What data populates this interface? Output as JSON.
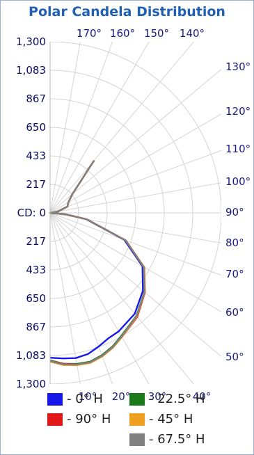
{
  "chart_data": {
    "type": "polar",
    "title": "Polar Candela Distribution",
    "radial_ticks": [
      "1,300",
      "1,083",
      "867",
      "650",
      "433",
      "217",
      "CD: 0",
      "217",
      "433",
      "650",
      "867",
      "1,083",
      "1,300"
    ],
    "radial_max": 1300,
    "top_angle_labels": [
      "170°",
      "160°",
      "150°",
      "140°"
    ],
    "right_angle_labels": [
      "130°",
      "120°",
      "110°",
      "100°",
      "90°",
      "80°",
      "70°",
      "60°",
      "50°"
    ],
    "bottom_angle_labels": [
      "10°",
      "20°",
      "30°",
      "40°"
    ],
    "grid": true,
    "series": [
      {
        "name": "- 0° H",
        "color": "#1818e8",
        "points": [
          [
            0,
            1100
          ],
          [
            5,
            1110
          ],
          [
            10,
            1120
          ],
          [
            15,
            1110
          ],
          [
            20,
            1080
          ],
          [
            25,
            1050
          ],
          [
            30,
            1040
          ],
          [
            40,
            1000
          ],
          [
            50,
            920
          ],
          [
            60,
            810
          ],
          [
            70,
            600
          ],
          [
            80,
            280
          ],
          [
            85,
            120
          ],
          [
            90,
            0
          ],
          [
            100,
            60
          ],
          [
            110,
            140
          ],
          [
            120,
            160
          ],
          [
            130,
            220
          ],
          [
            140,
            520
          ]
        ]
      },
      {
        "name": "- 22.5° H",
        "color": "#1a7a1a",
        "points": [
          [
            0,
            1120
          ],
          [
            5,
            1150
          ],
          [
            10,
            1165
          ],
          [
            15,
            1170
          ],
          [
            20,
            1150
          ],
          [
            25,
            1120
          ],
          [
            30,
            1080
          ],
          [
            40,
            1020
          ],
          [
            50,
            935
          ],
          [
            60,
            820
          ],
          [
            70,
            610
          ],
          [
            80,
            285
          ],
          [
            85,
            120
          ],
          [
            90,
            0
          ],
          [
            100,
            60
          ],
          [
            110,
            140
          ],
          [
            120,
            160
          ],
          [
            130,
            220
          ],
          [
            140,
            520
          ]
        ]
      },
      {
        "name": "- 90° H",
        "color": "#e01818",
        "points": [
          [
            0,
            1125
          ],
          [
            5,
            1150
          ],
          [
            10,
            1170
          ],
          [
            15,
            1175
          ],
          [
            20,
            1155
          ],
          [
            25,
            1125
          ],
          [
            30,
            1090
          ],
          [
            40,
            1030
          ],
          [
            50,
            940
          ],
          [
            60,
            825
          ],
          [
            70,
            612
          ],
          [
            80,
            286
          ],
          [
            85,
            120
          ],
          [
            90,
            0
          ],
          [
            100,
            60
          ],
          [
            110,
            140
          ],
          [
            120,
            160
          ],
          [
            130,
            220
          ],
          [
            140,
            520
          ]
        ]
      },
      {
        "name": "- 45° H",
        "color": "#f0a020",
        "points": [
          [
            0,
            1130
          ],
          [
            5,
            1160
          ],
          [
            10,
            1175
          ],
          [
            15,
            1180
          ],
          [
            20,
            1160
          ],
          [
            25,
            1130
          ],
          [
            30,
            1090
          ],
          [
            40,
            1025
          ],
          [
            50,
            938
          ],
          [
            60,
            822
          ],
          [
            70,
            611
          ],
          [
            80,
            285
          ],
          [
            85,
            120
          ],
          [
            90,
            0
          ],
          [
            100,
            60
          ],
          [
            110,
            140
          ],
          [
            120,
            160
          ],
          [
            130,
            220
          ],
          [
            140,
            520
          ]
        ]
      },
      {
        "name": "- 67.5° H",
        "color": "#808080",
        "points": [
          [
            0,
            1125
          ],
          [
            5,
            1155
          ],
          [
            10,
            1170
          ],
          [
            15,
            1175
          ],
          [
            20,
            1155
          ],
          [
            25,
            1125
          ],
          [
            30,
            1085
          ],
          [
            40,
            1022
          ],
          [
            50,
            936
          ],
          [
            60,
            821
          ],
          [
            70,
            610
          ],
          [
            80,
            285
          ],
          [
            85,
            120
          ],
          [
            90,
            0
          ],
          [
            100,
            60
          ],
          [
            110,
            140
          ],
          [
            120,
            160
          ],
          [
            130,
            220
          ],
          [
            140,
            520
          ]
        ]
      }
    ],
    "legend": {
      "placement": "bottom"
    }
  }
}
